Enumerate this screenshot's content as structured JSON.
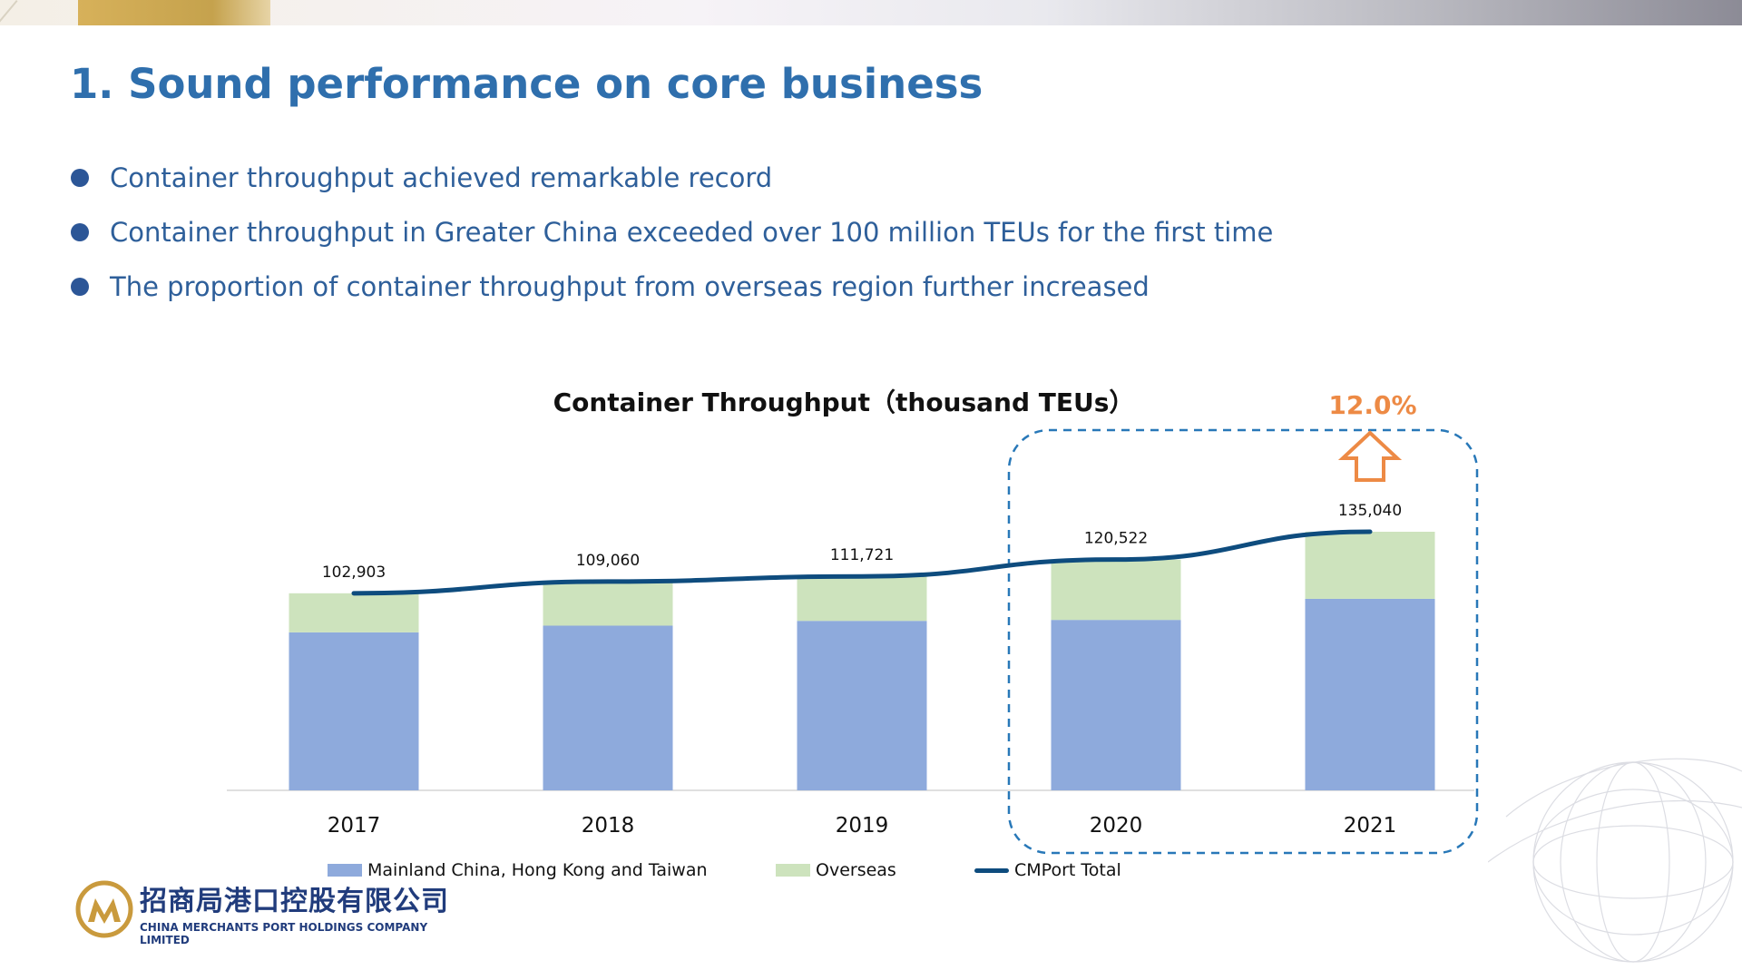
{
  "slide": {
    "title": "1. Sound performance on core business",
    "bullets": [
      "Container throughput achieved remarkable record",
      "Container throughput in Greater China exceeded over 100 million TEUs for the first time",
      "The proportion of container throughput from overseas region further increased"
    ]
  },
  "colors": {
    "title": "#2f6fad",
    "bullet_text": "#2e5f9a",
    "bullet_dot": "#2c5697",
    "mainland_bar": "#8eaadc",
    "overseas_bar": "#cde3bd",
    "total_line": "#0e4c7e",
    "highlight_box": "#2878b8",
    "growth_arrow": "#ed8a45"
  },
  "chart_data": {
    "type": "bar",
    "title": "Container Throughput（thousand TEUs）",
    "stacked": true,
    "categories": [
      "2017",
      "2018",
      "2019",
      "2020",
      "2021"
    ],
    "series": [
      {
        "name": "Mainland China, Hong Kong and Taiwan",
        "values": [
          82500,
          86000,
          88500,
          89000,
          100000
        ]
      },
      {
        "name": "Overseas",
        "values": [
          20403,
          23060,
          23221,
          31522,
          35040
        ]
      }
    ],
    "line_series": {
      "name": "CMPort Total",
      "values": [
        102903,
        109060,
        111721,
        120522,
        135040
      ],
      "labels": [
        "102,903",
        "109,060",
        "111,721",
        "120,522",
        "135,040"
      ]
    },
    "ylim": [
      0,
      135040
    ],
    "highlight": {
      "categories": [
        "2020",
        "2021"
      ],
      "annotation": "12.0%",
      "arrow": "up"
    },
    "legend_position": "bottom",
    "grid": false
  },
  "footer": {
    "logo_cn": "招商局港口控股有限公司",
    "logo_en": "CHINA MERCHANTS PORT HOLDINGS COMPANY LIMITED"
  }
}
